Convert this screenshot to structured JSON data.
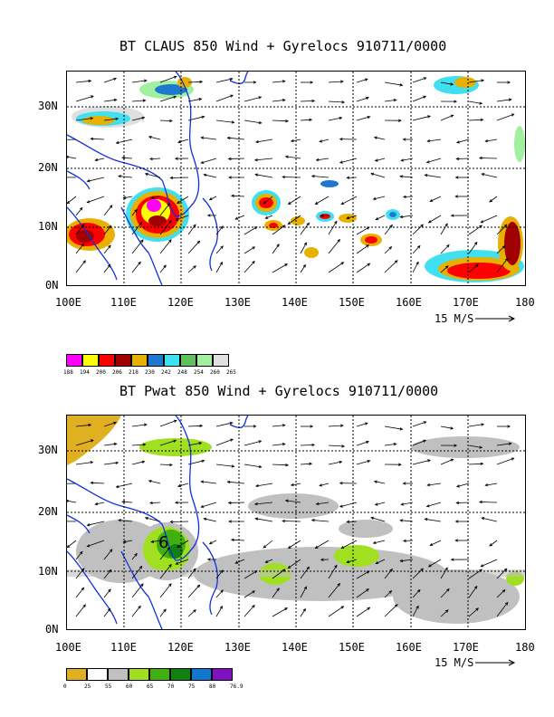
{
  "colors": {
    "coast": "#1030e0",
    "grid": "#000000",
    "arrow": "#000000"
  },
  "panels": [
    {
      "id": "claus",
      "title": "BT CLAUS 850 Wind + Gyrelocs 910711/0000",
      "lat_labels": [
        "30N",
        "20N",
        "10N",
        "0N"
      ],
      "lon_labels": [
        "100E",
        "110E",
        "120E",
        "130E",
        "140E",
        "150E",
        "160E",
        "170E",
        "180"
      ],
      "scale_label": "15 M/S",
      "legend": {
        "labels": [
          "188",
          "194",
          "200",
          "206",
          "218",
          "230",
          "242",
          "248",
          "254",
          "260",
          "265"
        ],
        "colors": [
          "#ff00ff",
          "#ffff00",
          "#ff0000",
          "#a00000",
          "#e8b000",
          "#1f78d0",
          "#40e0f0",
          "#60c060",
          "#a0f0a0",
          "#e0e0e0"
        ]
      }
    },
    {
      "id": "pwat",
      "title": "BT Pwat 850 Wind + Gyrelocs 910711/0000",
      "lat_labels": [
        "30N",
        "20N",
        "10N",
        "0N"
      ],
      "lon_labels": [
        "100E",
        "110E",
        "120E",
        "130E",
        "140E",
        "150E",
        "160E",
        "170E",
        "180"
      ],
      "scale_label": "15 M/S",
      "gyre_label": "6",
      "legend": {
        "labels": [
          "0",
          "25",
          "55",
          "60",
          "65",
          "70",
          "75",
          "80",
          "76.9"
        ],
        "colors": [
          "#e0b020",
          "#ffffff",
          "#c0c0c0",
          "#a0e020",
          "#40b010",
          "#108010",
          "#1078d0",
          "#8010c0"
        ]
      }
    }
  ]
}
